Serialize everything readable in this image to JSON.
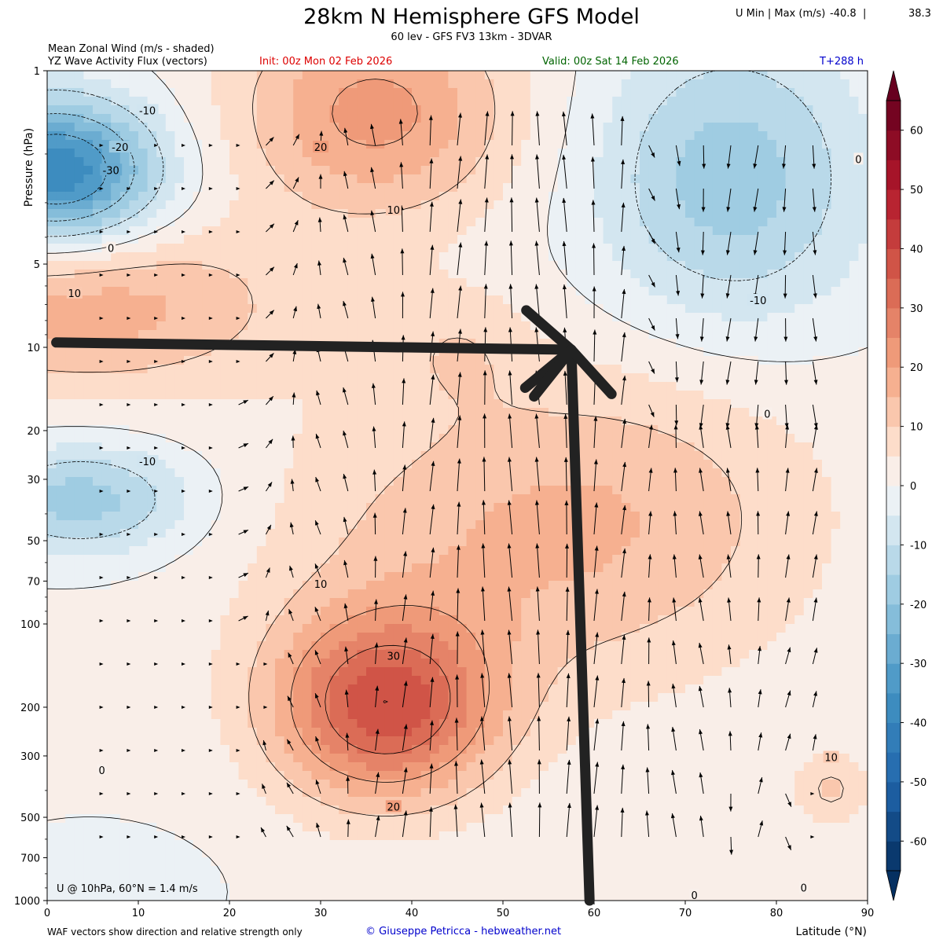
{
  "header": {
    "title": "28km N Hemisphere GFS Model",
    "subtitle": "60 lev - GFS FV3 13km - 3DVAR",
    "umm_label": "U Min | Max (m/s)",
    "umm_min": "-40.8",
    "umm_sep": "|",
    "umm_max": "38.3",
    "shaded_label": "Mean Zonal Wind (m/s - shaded)",
    "vector_label": "YZ Wave Activity Flux (vectors)",
    "init": "Init: 00z Mon 02 Feb 2026",
    "valid": "Valid: 00z Sat 14 Feb 2026",
    "lead": "T+288 h"
  },
  "footer": {
    "note": "WAF vectors show direction and relative strength only",
    "credit": "© Giuseppe Petricca - hebweather.net",
    "inset": "U @ 10hPa, 60°N =  1.4 m/s"
  },
  "colors": {
    "title": "#000000",
    "init": "#dd0000",
    "valid": "#006400",
    "lead": "#0000cc",
    "credit": "#0000cc",
    "annotation_arrow": "#222222"
  },
  "chart_data": {
    "type": "heatmap",
    "variable": "Mean Zonal Wind (m/s - shaded)",
    "vectors": "YZ Wave Activity Flux (vectors)",
    "xlabel": "Latitude (°N)",
    "ylabel": "Pressure (hPa)",
    "x_ticks": [
      0,
      10,
      20,
      30,
      40,
      50,
      60,
      70,
      80,
      90
    ],
    "xlim": [
      0,
      90
    ],
    "y_scale": "log",
    "y_inverted": true,
    "y_ticks": [
      1,
      5,
      10,
      20,
      30,
      50,
      70,
      100,
      200,
      300,
      500,
      700,
      1000
    ],
    "ylim": [
      1000,
      1
    ],
    "colorbar": {
      "ticks": [
        -60,
        -50,
        -40,
        -30,
        -20,
        -10,
        0,
        10,
        20,
        30,
        40,
        50,
        60
      ],
      "range": [
        -65,
        65
      ],
      "colormap": "RdBu_r"
    },
    "contour_labels": [
      {
        "value": "-10",
        "lat": 11,
        "p": 1.4
      },
      {
        "value": "-20",
        "lat": 8,
        "p": 1.9
      },
      {
        "value": "-30",
        "lat": 7,
        "p": 2.3
      },
      {
        "value": "20",
        "lat": 30,
        "p": 1.9
      },
      {
        "value": "0",
        "lat": 7,
        "p": 4.4
      },
      {
        "value": "10",
        "lat": 38,
        "p": 3.2
      },
      {
        "value": "10",
        "lat": 3,
        "p": 6.4
      },
      {
        "value": "-10",
        "lat": 78,
        "p": 6.8
      },
      {
        "value": "0",
        "lat": 89,
        "p": 2.1
      },
      {
        "value": "0",
        "lat": 79,
        "p": 17.5
      },
      {
        "value": "-10",
        "lat": 11,
        "p": 26
      },
      {
        "value": "10",
        "lat": 30,
        "p": 72
      },
      {
        "value": "30",
        "lat": 38,
        "p": 131
      },
      {
        "value": "20",
        "lat": 38,
        "p": 460
      },
      {
        "value": "0",
        "lat": 6,
        "p": 340
      },
      {
        "value": "10",
        "lat": 86,
        "p": 305
      },
      {
        "value": "0",
        "lat": 83,
        "p": 905
      },
      {
        "value": "0",
        "lat": 71,
        "p": 960
      }
    ],
    "annotations": [
      {
        "type": "arrow",
        "from": {
          "lat": 1,
          "p": 9.6
        },
        "to": {
          "lat": 57.5,
          "p": 10.2
        }
      },
      {
        "type": "arrow",
        "from": {
          "lat": 59.5,
          "p": 1000
        },
        "to": {
          "lat": 57.5,
          "p": 10.2
        }
      }
    ]
  }
}
